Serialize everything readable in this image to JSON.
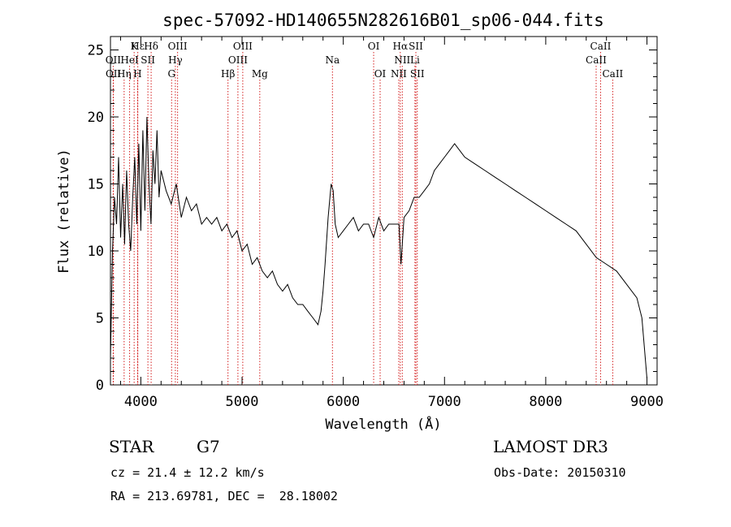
{
  "chart_data": {
    "type": "line",
    "title": "spec-57092-HD140655N282616B01_sp06-044.fits",
    "xlabel": "Wavelength (Å)",
    "ylabel": "Flux (relative)",
    "xlim": [
      3700,
      9100
    ],
    "ylim": [
      0,
      26
    ],
    "xticks": [
      4000,
      5000,
      6000,
      7000,
      8000,
      9000
    ],
    "yticks": [
      0,
      5,
      10,
      15,
      20,
      25
    ],
    "grid": false,
    "series": [
      {
        "x": [
          3700,
          3720,
          3740,
          3760,
          3780,
          3800,
          3820,
          3840,
          3860,
          3880,
          3900,
          3920,
          3940,
          3960,
          3980,
          4000,
          4020,
          4040,
          4060,
          4080,
          4100,
          4120,
          4140,
          4160,
          4180,
          4200,
          4250,
          4300,
          4350,
          4400,
          4450,
          4500,
          4550,
          4600,
          4650,
          4700,
          4750,
          4800,
          4850,
          4900,
          4950,
          5000,
          5050,
          5100,
          5150,
          5200,
          5250,
          5300,
          5350,
          5400,
          5450,
          5500,
          5550,
          5600,
          5650,
          5700,
          5750,
          5780,
          5800,
          5820,
          5850,
          5880,
          5900,
          5920,
          5950,
          6000,
          6050,
          6100,
          6150,
          6200,
          6250,
          6300,
          6350,
          6400,
          6450,
          6500,
          6550,
          6570,
          6600,
          6650,
          6700,
          6750,
          6800,
          6850,
          6900,
          6950,
          7000,
          7050,
          7100,
          7150,
          7200,
          7300,
          7400,
          7500,
          7600,
          7700,
          7800,
          7900,
          8000,
          8100,
          8200,
          8300,
          8400,
          8500,
          8600,
          8700,
          8800,
          8900,
          8950,
          9000
        ],
        "y": [
          2.0,
          10.0,
          14.0,
          12.0,
          17.0,
          11.0,
          15.0,
          10.5,
          16.0,
          12.0,
          10.0,
          14.0,
          17.0,
          12.0,
          18.0,
          11.5,
          19.0,
          13.0,
          20.0,
          15.0,
          12.0,
          17.5,
          15.0,
          19.0,
          14.0,
          16.0,
          14.5,
          13.5,
          15.0,
          12.5,
          14.0,
          13.0,
          13.5,
          12.0,
          12.5,
          12.0,
          12.5,
          11.5,
          12.0,
          11.0,
          11.5,
          10.0,
          10.5,
          9.0,
          9.5,
          8.5,
          8.0,
          8.5,
          7.5,
          7.0,
          7.5,
          6.5,
          6.0,
          6.0,
          5.5,
          5.0,
          4.5,
          5.5,
          7.0,
          9.0,
          12.5,
          15.0,
          14.5,
          12.0,
          11.0,
          11.5,
          12.0,
          12.5,
          11.5,
          12.0,
          12.0,
          11.0,
          12.5,
          11.5,
          12.0,
          12.0,
          12.0,
          9.0,
          12.5,
          13.0,
          14.0,
          14.0,
          14.5,
          15.0,
          16.0,
          16.5,
          17.0,
          17.5,
          18.0,
          17.5,
          17.0,
          16.5,
          16.0,
          15.5,
          15.0,
          14.5,
          14.0,
          13.5,
          13.0,
          12.5,
          12.0,
          11.5,
          10.5,
          9.5,
          9.0,
          8.5,
          7.5,
          6.5,
          5.0,
          0.5
        ]
      }
    ],
    "line_annotations": [
      {
        "label": "Hε",
        "wavelength": 3970,
        "row": 0
      },
      {
        "label": "K",
        "wavelength": 3934,
        "row": 0
      },
      {
        "label": "Hδ",
        "wavelength": 4102,
        "row": 0
      },
      {
        "label": "OIII",
        "wavelength": 4363,
        "row": 0
      },
      {
        "label": "OIII",
        "wavelength": 5007,
        "row": 0
      },
      {
        "label": "OI",
        "wavelength": 6300,
        "row": 0
      },
      {
        "label": "Hα",
        "wavelength": 6563,
        "row": 0
      },
      {
        "label": "SII",
        "wavelength": 6717,
        "row": 0
      },
      {
        "label": "CaII",
        "wavelength": 8542,
        "row": 0
      },
      {
        "label": "OII",
        "wavelength": 3727,
        "row": 1
      },
      {
        "label": "HeI",
        "wavelength": 3889,
        "row": 1
      },
      {
        "label": "SII",
        "wavelength": 4070,
        "row": 1
      },
      {
        "label": "Hγ",
        "wavelength": 4341,
        "row": 1
      },
      {
        "label": "OIII",
        "wavelength": 4959,
        "row": 1
      },
      {
        "label": "Na",
        "wavelength": 5893,
        "row": 1
      },
      {
        "label": "NII",
        "wavelength": 6583,
        "row": 1
      },
      {
        "label": "Li",
        "wavelength": 6708,
        "row": 1
      },
      {
        "label": "CaII",
        "wavelength": 8498,
        "row": 1
      },
      {
        "label": "OII",
        "wavelength": 3729,
        "row": 2
      },
      {
        "label": "Hη",
        "wavelength": 3835,
        "row": 2
      },
      {
        "label": "H",
        "wavelength": 3968,
        "row": 2
      },
      {
        "label": "G",
        "wavelength": 4304,
        "row": 2
      },
      {
        "label": "Hβ",
        "wavelength": 4861,
        "row": 2
      },
      {
        "label": "Mg",
        "wavelength": 5175,
        "row": 2
      },
      {
        "label": "OI",
        "wavelength": 6364,
        "row": 2
      },
      {
        "label": "NII",
        "wavelength": 6548,
        "row": 2
      },
      {
        "label": "SII",
        "wavelength": 6731,
        "row": 2
      },
      {
        "label": "CaII",
        "wavelength": 8662,
        "row": 2
      }
    ]
  },
  "info": {
    "object_class": "STAR",
    "subclass": "G7",
    "survey": "LAMOST DR3",
    "cz": "cz = 21.4 ± 12.2 km/s",
    "obs_date": "Obs-Date: 20150310",
    "coords": "RA = 213.69781, DEC =  28.18002"
  }
}
